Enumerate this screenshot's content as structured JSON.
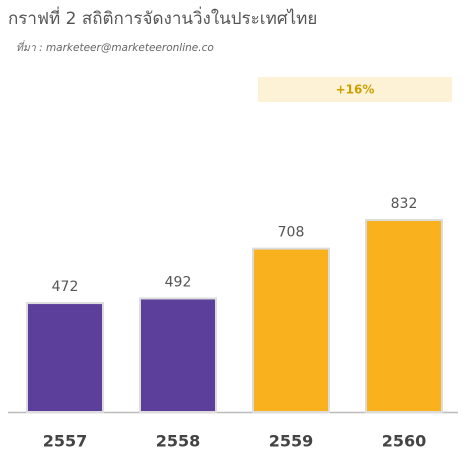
{
  "chart_data": {
    "type": "bar",
    "title": "กราฟที่ 2 สถิติการจัดงานวิ่งในประเทศไทย",
    "subtitle": "ที่มา : marketeer@marketeeronline.co",
    "annotation": "+16%",
    "categories": [
      "2557",
      "2558",
      "2559",
      "2560"
    ],
    "values": [
      472,
      492,
      708,
      832
    ],
    "colors": [
      "#5b3f9a",
      "#5b3f9a",
      "#f9b11d",
      "#f9b11d"
    ]
  }
}
